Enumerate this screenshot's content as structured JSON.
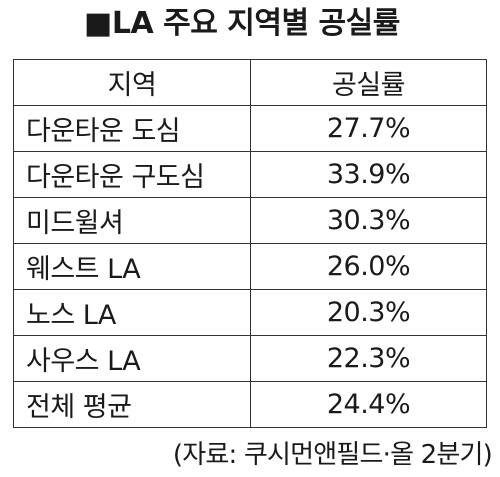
{
  "title": "■LA 주요 지역별 공실률",
  "table": {
    "headers": [
      "지역",
      "공실률"
    ],
    "rows": [
      {
        "region": "다운타운 도심",
        "rate": "27.7%"
      },
      {
        "region": "다운타운 구도심",
        "rate": "33.9%"
      },
      {
        "region": "미드윌셔",
        "rate": "30.3%"
      },
      {
        "region": "웨스트 LA",
        "rate": "26.0%"
      },
      {
        "region": "노스 LA",
        "rate": "20.3%"
      },
      {
        "region": "사우스 LA",
        "rate": "22.3%"
      },
      {
        "region": "전체 평균",
        "rate": "24.4%"
      }
    ]
  },
  "source": "(자료: 쿠시먼앤필드·올 2분기)"
}
